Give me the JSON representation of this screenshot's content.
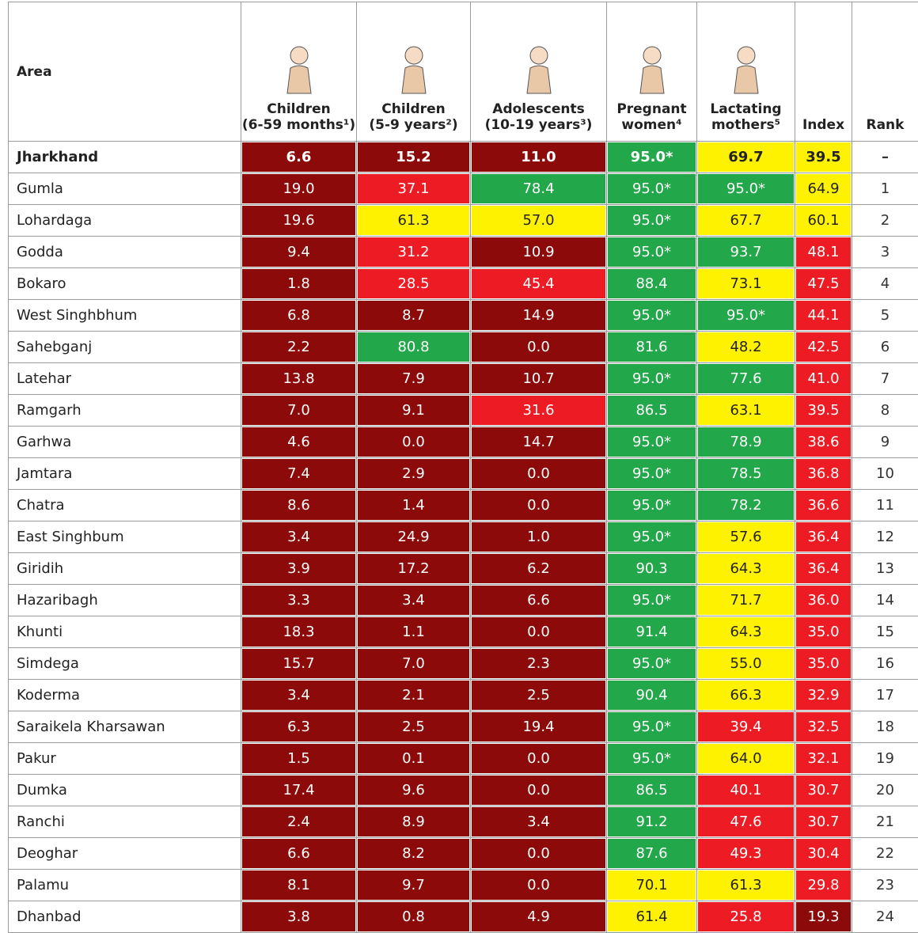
{
  "table": {
    "headers": [
      [
        "Area"
      ],
      [
        "Children",
        "(6-59 months¹)"
      ],
      [
        "Children",
        "(5-9 years²)"
      ],
      [
        "Adolescents",
        "(10-19 years³)"
      ],
      [
        "Pregnant",
        "women⁴"
      ],
      [
        "Lactating",
        "mothers⁵"
      ],
      [
        "Index"
      ],
      [
        "Rank"
      ]
    ],
    "rows": [
      {
        "area": "Jharkhand",
        "cells": [
          "6.6",
          "15.2",
          "11.0",
          "95.0*",
          "69.7",
          "39.5"
        ],
        "colors": [
          "#8c0a0a",
          "#8c0a0a",
          "#8c0a0a",
          "#22a84a",
          "#fff200",
          "#fff200"
        ],
        "rank": "–"
      },
      {
        "area": "Gumla",
        "cells": [
          "19.0",
          "37.1",
          "78.4",
          "95.0*",
          "95.0*",
          "64.9"
        ],
        "colors": [
          "#8c0a0a",
          "#ed1c24",
          "#22a84a",
          "#22a84a",
          "#22a84a",
          "#fff200"
        ],
        "rank": 1
      },
      {
        "area": "Lohardaga",
        "cells": [
          "19.6",
          "61.3",
          "57.0",
          "95.0*",
          "67.7",
          "60.1"
        ],
        "colors": [
          "#8c0a0a",
          "#fff200",
          "#fff200",
          "#22a84a",
          "#fff200",
          "#fff200"
        ],
        "rank": 2
      },
      {
        "area": "Godda",
        "cells": [
          "9.4",
          "31.2",
          "10.9",
          "95.0*",
          "93.7",
          "48.1"
        ],
        "colors": [
          "#8c0a0a",
          "#ed1c24",
          "#8c0a0a",
          "#22a84a",
          "#22a84a",
          "#ed1c24"
        ],
        "rank": 3
      },
      {
        "area": "Bokaro",
        "cells": [
          "1.8",
          "28.5",
          "45.4",
          "88.4",
          "73.1",
          "47.5"
        ],
        "colors": [
          "#8c0a0a",
          "#ed1c24",
          "#ed1c24",
          "#22a84a",
          "#fff200",
          "#ed1c24"
        ],
        "rank": 4
      },
      {
        "area": "West Singhbhum",
        "cells": [
          "6.8",
          "8.7",
          "14.9",
          "95.0*",
          "95.0*",
          "44.1"
        ],
        "colors": [
          "#8c0a0a",
          "#8c0a0a",
          "#8c0a0a",
          "#22a84a",
          "#22a84a",
          "#ed1c24"
        ],
        "rank": 5
      },
      {
        "area": "Sahebganj",
        "cells": [
          "2.2",
          "80.8",
          "0.0",
          "81.6",
          "48.2",
          "42.5"
        ],
        "colors": [
          "#8c0a0a",
          "#22a84a",
          "#8c0a0a",
          "#22a84a",
          "#fff200",
          "#ed1c24"
        ],
        "rank": 6
      },
      {
        "area": "Latehar",
        "cells": [
          "13.8",
          "7.9",
          "10.7",
          "95.0*",
          "77.6",
          "41.0"
        ],
        "colors": [
          "#8c0a0a",
          "#8c0a0a",
          "#8c0a0a",
          "#22a84a",
          "#22a84a",
          "#ed1c24"
        ],
        "rank": 7
      },
      {
        "area": "Ramgarh",
        "cells": [
          "7.0",
          "9.1",
          "31.6",
          "86.5",
          "63.1",
          "39.5"
        ],
        "colors": [
          "#8c0a0a",
          "#8c0a0a",
          "#ed1c24",
          "#22a84a",
          "#fff200",
          "#ed1c24"
        ],
        "rank": 8
      },
      {
        "area": "Garhwa",
        "cells": [
          "4.6",
          "0.0",
          "14.7",
          "95.0*",
          "78.9",
          "38.6"
        ],
        "colors": [
          "#8c0a0a",
          "#8c0a0a",
          "#8c0a0a",
          "#22a84a",
          "#22a84a",
          "#ed1c24"
        ],
        "rank": 9
      },
      {
        "area": "Jamtara",
        "cells": [
          "7.4",
          "2.9",
          "0.0",
          "95.0*",
          "78.5",
          "36.8"
        ],
        "colors": [
          "#8c0a0a",
          "#8c0a0a",
          "#8c0a0a",
          "#22a84a",
          "#22a84a",
          "#ed1c24"
        ],
        "rank": 10
      },
      {
        "area": "Chatra",
        "cells": [
          "8.6",
          "1.4",
          "0.0",
          "95.0*",
          "78.2",
          "36.6"
        ],
        "colors": [
          "#8c0a0a",
          "#8c0a0a",
          "#8c0a0a",
          "#22a84a",
          "#22a84a",
          "#ed1c24"
        ],
        "rank": 11
      },
      {
        "area": "East Singhbum",
        "cells": [
          "3.4",
          "24.9",
          "1.0",
          "95.0*",
          "57.6",
          "36.4"
        ],
        "colors": [
          "#8c0a0a",
          "#8c0a0a",
          "#8c0a0a",
          "#22a84a",
          "#fff200",
          "#ed1c24"
        ],
        "rank": 12
      },
      {
        "area": "Giridih",
        "cells": [
          "3.9",
          "17.2",
          "6.2",
          "90.3",
          "64.3",
          "36.4"
        ],
        "colors": [
          "#8c0a0a",
          "#8c0a0a",
          "#8c0a0a",
          "#22a84a",
          "#fff200",
          "#ed1c24"
        ],
        "rank": 13
      },
      {
        "area": "Hazaribagh",
        "cells": [
          "3.3",
          "3.4",
          "6.6",
          "95.0*",
          "71.7",
          "36.0"
        ],
        "colors": [
          "#8c0a0a",
          "#8c0a0a",
          "#8c0a0a",
          "#22a84a",
          "#fff200",
          "#ed1c24"
        ],
        "rank": 14
      },
      {
        "area": "Khunti",
        "cells": [
          "18.3",
          "1.1",
          "0.0",
          "91.4",
          "64.3",
          "35.0"
        ],
        "colors": [
          "#8c0a0a",
          "#8c0a0a",
          "#8c0a0a",
          "#22a84a",
          "#fff200",
          "#ed1c24"
        ],
        "rank": 15
      },
      {
        "area": "Simdega",
        "cells": [
          "15.7",
          "7.0",
          "2.3",
          "95.0*",
          "55.0",
          "35.0"
        ],
        "colors": [
          "#8c0a0a",
          "#8c0a0a",
          "#8c0a0a",
          "#22a84a",
          "#fff200",
          "#ed1c24"
        ],
        "rank": 16
      },
      {
        "area": "Koderma",
        "cells": [
          "3.4",
          "2.1",
          "2.5",
          "90.4",
          "66.3",
          "32.9"
        ],
        "colors": [
          "#8c0a0a",
          "#8c0a0a",
          "#8c0a0a",
          "#22a84a",
          "#fff200",
          "#ed1c24"
        ],
        "rank": 17
      },
      {
        "area": "Saraikela Kharsawan",
        "cells": [
          "6.3",
          "2.5",
          "19.4",
          "95.0*",
          "39.4",
          "32.5"
        ],
        "colors": [
          "#8c0a0a",
          "#8c0a0a",
          "#8c0a0a",
          "#22a84a",
          "#ed1c24",
          "#ed1c24"
        ],
        "rank": 18
      },
      {
        "area": "Pakur",
        "cells": [
          "1.5",
          "0.1",
          "0.0",
          "95.0*",
          "64.0",
          "32.1"
        ],
        "colors": [
          "#8c0a0a",
          "#8c0a0a",
          "#8c0a0a",
          "#22a84a",
          "#fff200",
          "#ed1c24"
        ],
        "rank": 19
      },
      {
        "area": "Dumka",
        "cells": [
          "17.4",
          "9.6",
          "0.0",
          "86.5",
          "40.1",
          "30.7"
        ],
        "colors": [
          "#8c0a0a",
          "#8c0a0a",
          "#8c0a0a",
          "#22a84a",
          "#ed1c24",
          "#ed1c24"
        ],
        "rank": 20
      },
      {
        "area": "Ranchi",
        "cells": [
          "2.4",
          "8.9",
          "3.4",
          "91.2",
          "47.6",
          "30.7"
        ],
        "colors": [
          "#8c0a0a",
          "#8c0a0a",
          "#8c0a0a",
          "#22a84a",
          "#ed1c24",
          "#ed1c24"
        ],
        "rank": 21
      },
      {
        "area": "Deoghar",
        "cells": [
          "6.6",
          "8.2",
          "0.0",
          "87.6",
          "49.3",
          "30.4"
        ],
        "colors": [
          "#8c0a0a",
          "#8c0a0a",
          "#8c0a0a",
          "#22a84a",
          "#ed1c24",
          "#ed1c24"
        ],
        "rank": 22
      },
      {
        "area": "Palamu",
        "cells": [
          "8.1",
          "9.7",
          "0.0",
          "70.1",
          "61.3",
          "29.8"
        ],
        "colors": [
          "#8c0a0a",
          "#8c0a0a",
          "#8c0a0a",
          "#fff200",
          "#fff200",
          "#ed1c24"
        ],
        "rank": 23
      },
      {
        "area": "Dhanbad",
        "cells": [
          "3.8",
          "0.8",
          "4.9",
          "61.4",
          "25.8",
          "19.3"
        ],
        "colors": [
          "#8c0a0a",
          "#8c0a0a",
          "#8c0a0a",
          "#fff200",
          "#ed1c24",
          "#8c0a0a"
        ],
        "rank": 24
      }
    ]
  }
}
